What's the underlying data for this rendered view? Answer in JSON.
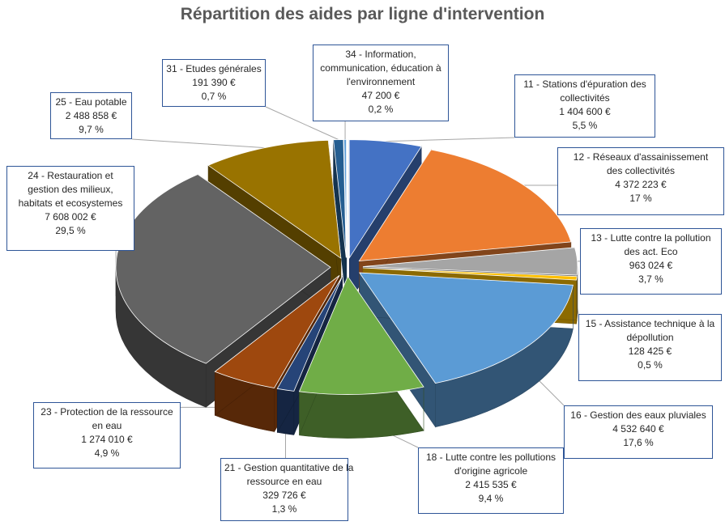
{
  "chart_data": {
    "type": "pie",
    "title": "Répartition des aides par ligne d'intervention",
    "slices": [
      {
        "name": "34 - Information, communication, éducation à l'environnement",
        "label_lines": [
          "34 - Information,",
          "communication, éducation à",
          "l'environnement"
        ],
        "amount": "47 200 €",
        "percent_label": "0,2 %",
        "value": 47200,
        "color": "#5b9bd5"
      },
      {
        "name": "11 - Stations d'épuration des collectivités",
        "label_lines": [
          "11 - Stations d'épuration des",
          "collectivités"
        ],
        "amount": "1 404 600 €",
        "percent_label": "5,5 %",
        "value": 1404600,
        "color": "#4472c4"
      },
      {
        "name": "12 - Réseaux d'assainissement des collectivités",
        "label_lines": [
          "12 - Réseaux d'assainissement",
          "des collectivités"
        ],
        "amount": "4 372 223 €",
        "percent_label": "17 %",
        "value": 4372223,
        "color": "#ed7d31"
      },
      {
        "name": "13 - Lutte contre la pollution des act. Eco",
        "label_lines": [
          "13 - Lutte contre la pollution",
          "des act. Eco"
        ],
        "amount": "963 024 €",
        "percent_label": "3,7 %",
        "value": 963024,
        "color": "#a5a5a5"
      },
      {
        "name": "15 - Assistance technique à la dépollution",
        "label_lines": [
          "15 - Assistance technique à la",
          "dépollution"
        ],
        "amount": "128 425 €",
        "percent_label": "0,5 %",
        "value": 128425,
        "color": "#ffc000"
      },
      {
        "name": "16 - Gestion des eaux pluviales",
        "label_lines": [
          "16 - Gestion des eaux pluviales"
        ],
        "amount": "4 532 640 €",
        "percent_label": "17,6 %",
        "value": 4532640,
        "color": "#5b9bd5"
      },
      {
        "name": "18 - Lutte contre les pollutions d'origine agricole",
        "label_lines": [
          "18 - Lutte contre les pollutions",
          "d'origine agricole"
        ],
        "amount": "2 415 535 €",
        "percent_label": "9,4 %",
        "value": 2415535,
        "color": "#70ad47"
      },
      {
        "name": "21 - Gestion quantitative de la ressource en eau",
        "label_lines": [
          "21 - Gestion quantitative de la",
          "ressource en eau"
        ],
        "amount": "329 726 €",
        "percent_label": "1,3 %",
        "value": 329726,
        "color": "#264478"
      },
      {
        "name": "23 - Protection de la ressource en eau",
        "label_lines": [
          "23 - Protection de la ressource",
          "en eau"
        ],
        "amount": "1 274 010 €",
        "percent_label": "4,9 %",
        "value": 1274010,
        "color": "#9e480e"
      },
      {
        "name": "24 - Restauration et gestion des milieux, habitats et ecosystemes",
        "label_lines": [
          "24 - Restauration et",
          "gestion des milieux,",
          "habitats et ecosystemes"
        ],
        "amount": "7 608 002 €",
        "percent_label": "29,5 %",
        "value": 7608002,
        "color": "#636363"
      },
      {
        "name": "25 - Eau potable",
        "label_lines": [
          "25 - Eau potable"
        ],
        "amount": "2 488 858 €",
        "percent_label": "9,7 %",
        "value": 2488858,
        "color": "#997300"
      },
      {
        "name": "31 - Etudes générales",
        "label_lines": [
          "31 - Etudes générales"
        ],
        "amount": "191 390 €",
        "percent_label": "0,7 %",
        "value": 191390,
        "color": "#255e91"
      }
    ]
  }
}
